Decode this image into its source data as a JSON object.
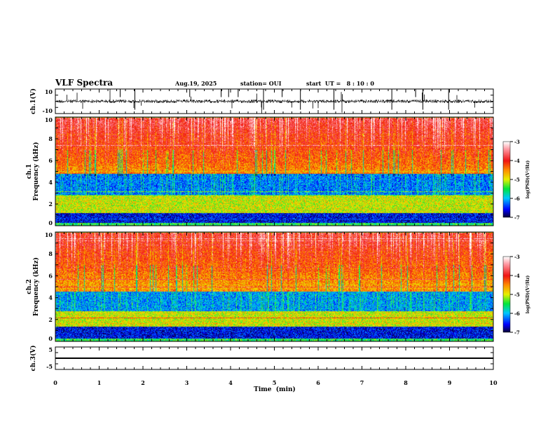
{
  "header": {
    "title": "VLF Spectra",
    "date": "Aug.19, 2025",
    "station": "station= OUI",
    "start_ut": "start  UT =   8 : 10 : 0"
  },
  "chart_data": [
    {
      "type": "line",
      "name": "ch1-waveform",
      "ylabel": "ch.1(V)",
      "ylim": [
        -10,
        10
      ],
      "yticks": [
        "10",
        "-10"
      ],
      "description_values": {
        "baseline": 0,
        "typical_amplitude": 2,
        "spike_amplitude": 10
      },
      "xlim": [
        0,
        10
      ]
    },
    {
      "type": "heatmap",
      "name": "ch1-spectrogram",
      "ylabel": "ch.1\nFrequency  (kHz)",
      "ylabel_lines": [
        "ch.1",
        "Frequency  (kHz)"
      ],
      "ylim": [
        0,
        10
      ],
      "yticks": [
        "0",
        "2",
        "4",
        "6",
        "8",
        "10"
      ],
      "xlim": [
        0,
        10
      ],
      "colorbar": {
        "label": "log(PSD)(V²/Hz)",
        "range": [
          -7,
          -3
        ],
        "ticks": [
          "-3",
          "-4",
          "-5",
          "-6",
          "-7"
        ]
      },
      "bands_khz_logpsd": [
        [
          0,
          0.3,
          -5.5
        ],
        [
          0.3,
          1.2,
          -6.6
        ],
        [
          1.2,
          2.8,
          -5.0
        ],
        [
          2.8,
          4.8,
          -6.3
        ],
        [
          4.8,
          10,
          -4.6
        ]
      ]
    },
    {
      "type": "heatmap",
      "name": "ch2-spectrogram",
      "ylabel_lines": [
        "ch.2",
        "Frequency  (kHz)"
      ],
      "ylim": [
        0,
        10
      ],
      "yticks": [
        "0",
        "2",
        "4",
        "6",
        "8",
        "10"
      ],
      "xlim": [
        0,
        10
      ],
      "colorbar": {
        "label": "log(PSD)(V²/Hz)",
        "range": [
          -7,
          -3
        ],
        "ticks": [
          "-3",
          "-4",
          "-5",
          "-6",
          "-7"
        ]
      },
      "bands_khz_logpsd": [
        [
          0,
          0.3,
          -5.5
        ],
        [
          0.3,
          1.4,
          -6.6
        ],
        [
          1.4,
          2.8,
          -5.0
        ],
        [
          2.8,
          4.6,
          -6.2
        ],
        [
          4.6,
          10,
          -4.7
        ]
      ]
    },
    {
      "type": "line",
      "name": "ch3-waveform",
      "ylabel": "ch.3(V)",
      "ylim": [
        -5,
        5
      ],
      "yticks": [
        "5",
        "-5"
      ],
      "values_constant": 0,
      "xlim": [
        0,
        10
      ]
    }
  ],
  "xaxis": {
    "label": "Time  (min)",
    "ticks": [
      "0",
      "1",
      "2",
      "3",
      "4",
      "5",
      "6",
      "7",
      "8",
      "9",
      "10"
    ]
  }
}
